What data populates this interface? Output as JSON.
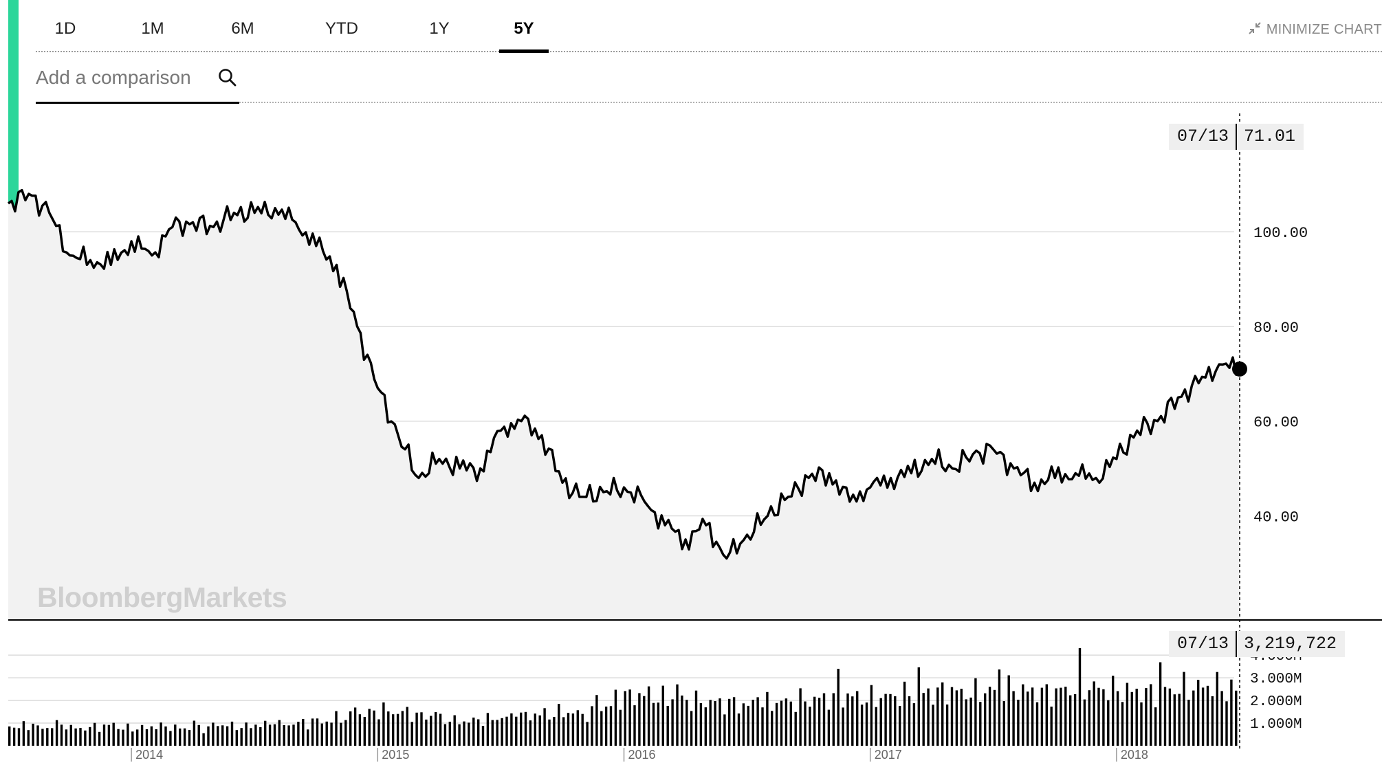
{
  "range_tabs": [
    {
      "label": "1D",
      "active": false
    },
    {
      "label": "1M",
      "active": false
    },
    {
      "label": "6M",
      "active": false
    },
    {
      "label": "YTD",
      "active": false
    },
    {
      "label": "1Y",
      "active": false
    },
    {
      "label": "5Y",
      "active": true
    }
  ],
  "minimize_label": "MINIMIZE CHART",
  "search": {
    "placeholder": "Add a comparison"
  },
  "watermark": "BloombergMarkets",
  "colors": {
    "accent": "#2bd69a",
    "line": "#000000",
    "fill": "#f2f2f2",
    "grid": "#dcdcdc"
  },
  "icons": {
    "search": "search-icon",
    "minimize": "minimize-arrows-icon"
  },
  "tooltip_price": {
    "date": "07/13",
    "value": "71.01"
  },
  "tooltip_volume": {
    "date": "07/13",
    "value": "3,219,722"
  },
  "chart_data": [
    {
      "type": "line",
      "title": "",
      "xlabel": "",
      "ylabel": "",
      "x_tick_labels": [
        "2014",
        "2015",
        "2016",
        "2017",
        "2018"
      ],
      "y_tick_labels": [
        "100.00",
        "80.00",
        "60.00",
        "40.00"
      ],
      "y_ticks": [
        100,
        80,
        60,
        40
      ],
      "ylim": [
        18,
        125
      ],
      "xlim": [
        "2013-07",
        "2018-07"
      ],
      "grid": true,
      "series": [
        {
          "x": [
            "2013-07",
            "2013-08",
            "2013-09",
            "2013-10",
            "2013-11",
            "2013-12",
            "2014-01",
            "2014-02",
            "2014-03",
            "2014-04",
            "2014-05",
            "2014-06",
            "2014-07",
            "2014-08",
            "2014-09",
            "2014-10",
            "2014-11",
            "2014-12",
            "2015-01",
            "2015-02",
            "2015-03",
            "2015-04",
            "2015-05",
            "2015-06",
            "2015-07",
            "2015-08",
            "2015-09",
            "2015-10",
            "2015-11",
            "2015-12",
            "2016-01",
            "2016-02",
            "2016-03",
            "2016-04",
            "2016-05",
            "2016-06",
            "2016-07",
            "2016-08",
            "2016-09",
            "2016-10",
            "2016-11",
            "2016-12",
            "2017-01",
            "2017-02",
            "2017-03",
            "2017-04",
            "2017-05",
            "2017-06",
            "2017-07",
            "2017-08",
            "2017-09",
            "2017-10",
            "2017-11",
            "2017-12",
            "2018-01",
            "2018-02",
            "2018-03",
            "2018-04",
            "2018-05",
            "2018-06",
            "2018-07"
          ],
          "values": [
            106,
            108,
            104,
            95,
            94,
            93,
            98,
            95,
            101,
            102,
            101,
            104,
            104,
            105,
            102,
            97,
            93,
            80,
            67,
            57,
            48,
            52,
            50,
            50,
            58,
            60,
            57,
            47,
            44,
            45,
            46,
            43,
            38,
            35,
            38,
            31,
            36,
            40,
            44,
            48,
            49,
            43,
            46,
            48,
            49,
            52,
            50,
            53,
            54,
            50,
            47,
            48,
            49,
            48,
            52,
            58,
            60,
            65,
            68,
            72,
            71.01
          ]
        }
      ]
    },
    {
      "type": "bar",
      "title": "",
      "xlabel": "",
      "ylabel": "",
      "y_tick_labels": [
        "4.000M",
        "3.000M",
        "2.000M",
        "1.000M"
      ],
      "y_ticks": [
        4000000,
        3000000,
        2000000,
        1000000
      ],
      "ylim": [
        0,
        4400000
      ],
      "grid": true,
      "volume_by_month_millions": [
        1.1,
        1.0,
        1.2,
        1.0,
        1.1,
        1.0,
        1.0,
        1.1,
        1.0,
        1.0,
        1.2,
        1.1,
        1.2,
        1.2,
        1.3,
        1.4,
        1.6,
        1.8,
        2.0,
        1.9,
        1.7,
        1.5,
        1.4,
        1.5,
        1.6,
        1.7,
        1.8,
        1.9,
        1.8,
        2.2,
        2.8,
        2.9,
        2.7,
        2.6,
        2.5,
        2.4,
        2.3,
        2.4,
        2.5,
        2.6,
        2.7,
        2.8,
        2.7,
        2.8,
        2.9,
        3.0,
        3.1,
        3.0,
        3.1,
        3.2,
        3.1,
        3.0,
        3.2,
        3.3,
        3.2,
        3.1,
        3.0,
        3.2,
        3.3,
        3.4,
        3.2
      ]
    }
  ]
}
